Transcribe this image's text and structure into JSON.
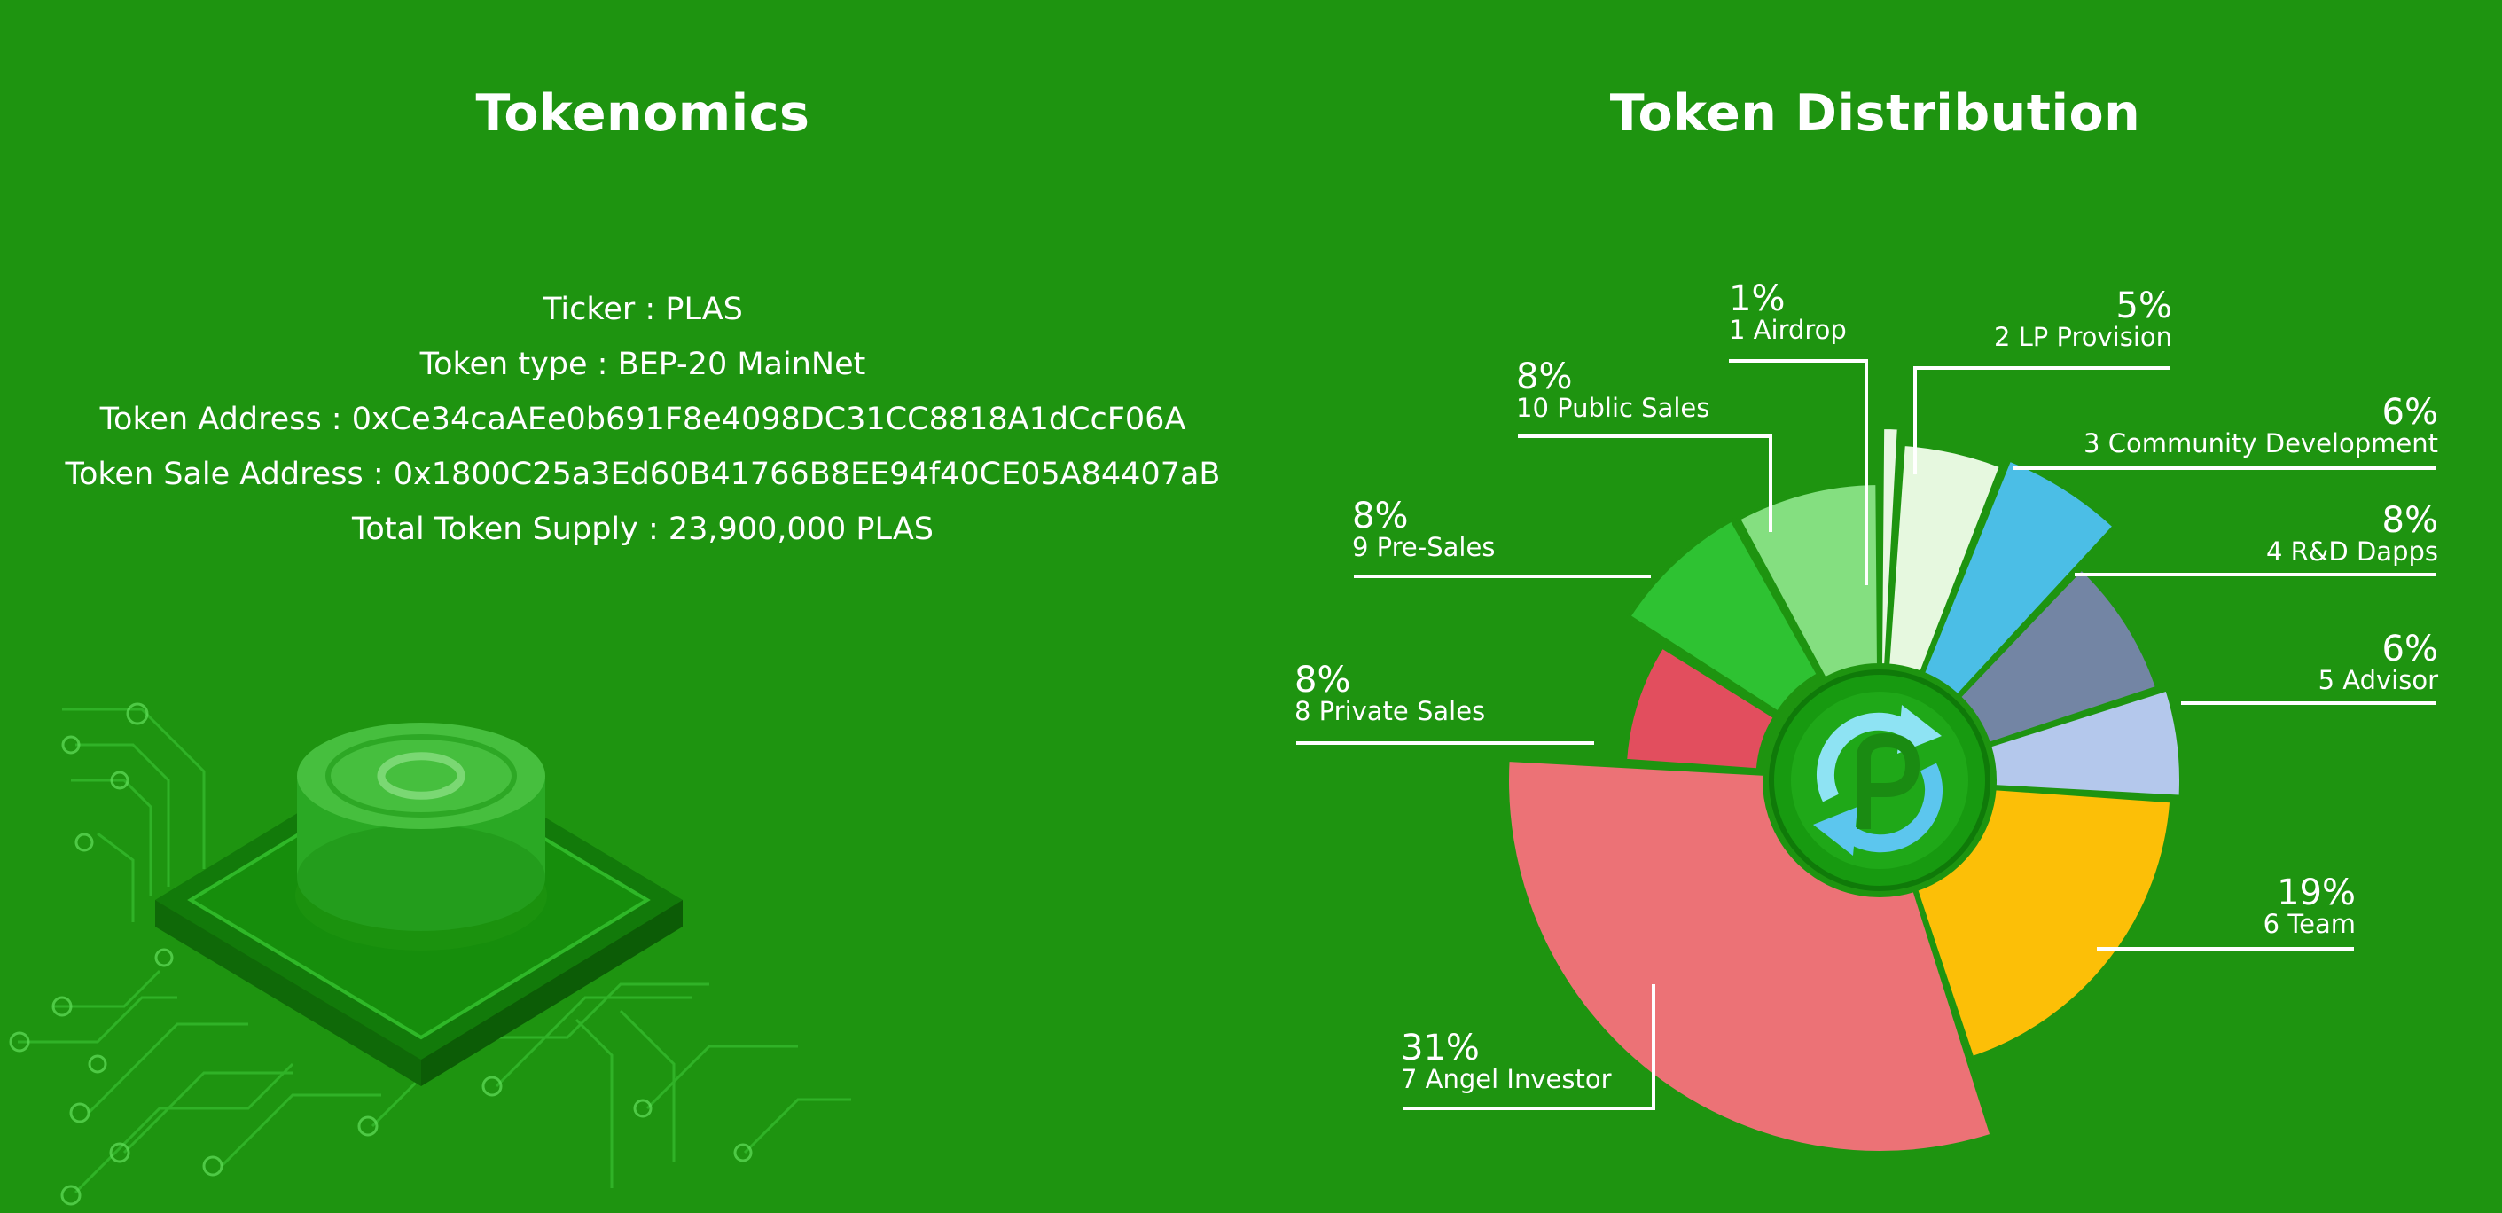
{
  "tokenomics": {
    "heading": "Tokenomics",
    "lines": [
      "Ticker : PLAS",
      "Token type : BEP-20 MainNet",
      "Token Address : 0xCe34caAEe0b691F8e4098DC31CC8818A1dCcF06A",
      "Token Sale Address : 0x1800C25a3Ed60B41766B8EE94f40CE05A84407aB",
      "Total Token Supply : 23,900,000 PLAS"
    ]
  },
  "distribution": {
    "heading": "Token Distribution"
  },
  "icons": {
    "center_logo": "plastic-recycle-logo-icon",
    "coin": "coin-chip-icon"
  },
  "chart_data": {
    "type": "pie",
    "title": "Token Distribution",
    "categories": [
      "1 Airdrop",
      "2 LP Provision",
      "3 Community Development",
      "4 R&D Dapps",
      "5 Advisor",
      "6 Team",
      "7 Angel Investor",
      "8 Private Sales",
      "9 Pre-Sales",
      "10 Public Sales"
    ],
    "values": [
      1,
      5,
      6,
      8,
      6,
      19,
      31,
      8,
      8,
      8
    ],
    "value_labels": [
      "1%",
      "5%",
      "6%",
      "8%",
      "6%",
      "19%",
      "31%",
      "8%",
      "8%",
      "8%"
    ],
    "colors": [
      "#e8f7e2",
      "#e6f8df",
      "#4bbee6",
      "#7385a4",
      "#b4c8ec",
      "#fcbf07",
      "#ec7276",
      "#e24e5e",
      "#2ec232",
      "#84df80"
    ]
  }
}
